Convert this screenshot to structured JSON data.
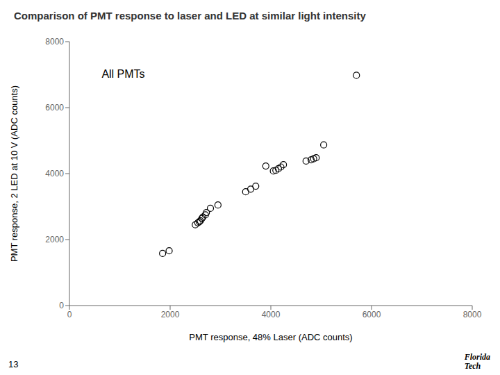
{
  "chart_data": {
    "type": "scatter",
    "title": "Comparison of PMT response to laser and LED at similar light intensity",
    "xlabel": "PMT response, 48% Laser  (ADC counts)",
    "ylabel": "PMT response, 2 LED at 10 V  (ADC counts)",
    "annotations": [
      "All PMTs",
      "13",
      "Florida",
      "Tech"
    ],
    "x": [
      1850,
      1980,
      2500,
      2550,
      2580,
      2600,
      2630,
      2650,
      2700,
      2720,
      2800,
      2950,
      3500,
      3600,
      3700,
      3900,
      4050,
      4100,
      4150,
      4200,
      4250,
      4700,
      4800,
      4850,
      4900,
      5050,
      5700
    ],
    "values": [
      1580,
      1660,
      2450,
      2510,
      2540,
      2570,
      2640,
      2680,
      2750,
      2820,
      2950,
      3050,
      3450,
      3530,
      3620,
      4230,
      4080,
      4100,
      4150,
      4200,
      4270,
      4380,
      4420,
      4450,
      4480,
      4870,
      6980
    ],
    "xlim": [
      0,
      8000
    ],
    "ylim": [
      0,
      8000
    ],
    "xticks": [
      0,
      2000,
      4000,
      6000,
      8000
    ],
    "yticks": [
      0,
      2000,
      4000,
      6000,
      8000
    ],
    "color": "#000000",
    "marker": "open_circle",
    "grid": false
  }
}
